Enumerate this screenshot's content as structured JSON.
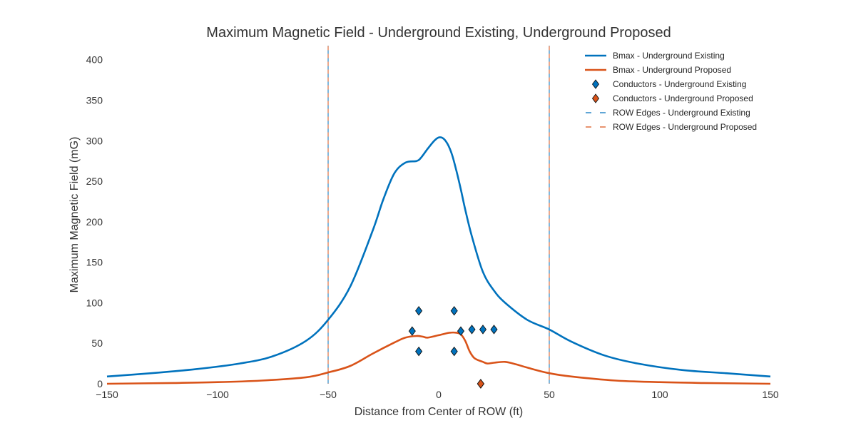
{
  "chart_data": {
    "type": "line",
    "title": "Maximum Magnetic Field - Underground Existing, Underground Proposed",
    "xlabel": "Distance from Center of ROW (ft)",
    "ylabel": "Maximum Magnetic Field (mG)",
    "xlim": [
      -150,
      150
    ],
    "ylim": [
      0,
      420
    ],
    "x_ticks": [
      -150,
      -100,
      -50,
      0,
      50,
      100,
      150
    ],
    "x_tick_labels": [
      "−150",
      "−100",
      "−50",
      "0",
      "50",
      "100",
      "150"
    ],
    "y_ticks": [
      0,
      50,
      100,
      150,
      200,
      250,
      300,
      350,
      400
    ],
    "y_tick_labels": [
      "0",
      "50",
      "100",
      "150",
      "200",
      "250",
      "300",
      "350",
      "400"
    ],
    "grid": false,
    "legend_position": "top-right",
    "series": [
      {
        "name": "Bmax - Underground Existing",
        "kind": "line",
        "color": "#0072bd",
        "x": [
          -150,
          -130,
          -110,
          -90,
          -75,
          -60,
          -50,
          -40,
          -30,
          -25,
          -20,
          -15,
          -10,
          -8,
          -5,
          -2,
          0,
          2,
          4,
          6,
          8,
          10,
          12,
          15,
          20,
          25,
          30,
          40,
          50,
          60,
          75,
          90,
          110,
          130,
          150
        ],
        "y": [
          9,
          13,
          18,
          25,
          34,
          53,
          79,
          120,
          188,
          228,
          260,
          273,
          275,
          279,
          290,
          300,
          304,
          303,
          296,
          283,
          263,
          240,
          215,
          182,
          138,
          115,
          100,
          79,
          67,
          52,
          35,
          25,
          17,
          13,
          9
        ]
      },
      {
        "name": "Bmax - Underground Proposed",
        "kind": "line",
        "color": "#d95319",
        "x": [
          -150,
          -120,
          -100,
          -80,
          -60,
          -50,
          -40,
          -30,
          -20,
          -15,
          -10,
          -7,
          -5,
          0,
          5,
          8,
          10,
          12,
          14,
          16,
          18,
          20,
          22,
          25,
          30,
          35,
          40,
          50,
          60,
          80,
          100,
          120,
          150
        ],
        "y": [
          0,
          1,
          2,
          4,
          8,
          14,
          22,
          37,
          51,
          57,
          59,
          58,
          57,
          60,
          63,
          63,
          61,
          53,
          40,
          32,
          29,
          27,
          25,
          26,
          27,
          24,
          20,
          13,
          9,
          4,
          2,
          1,
          0
        ]
      },
      {
        "name": "Conductors - Underground Existing",
        "kind": "marker",
        "color": "#0072bd",
        "x": [
          -9,
          7,
          -12,
          10,
          -9,
          7,
          15,
          20,
          25
        ],
        "y": [
          90,
          90,
          65,
          65,
          40,
          40,
          67,
          67,
          67
        ]
      },
      {
        "name": "Conductors - Underground Proposed",
        "kind": "marker",
        "color": "#d95319",
        "x": [
          19,
          19,
          19
        ],
        "y": [
          0,
          0,
          0
        ]
      },
      {
        "name": "ROW Edges - Underground Existing",
        "kind": "vline",
        "color": "#0072bd",
        "x": [
          -50,
          50
        ]
      },
      {
        "name": "ROW Edges - Underground Proposed",
        "kind": "vline",
        "color": "#d95319",
        "x": [
          -50,
          50
        ]
      }
    ]
  }
}
